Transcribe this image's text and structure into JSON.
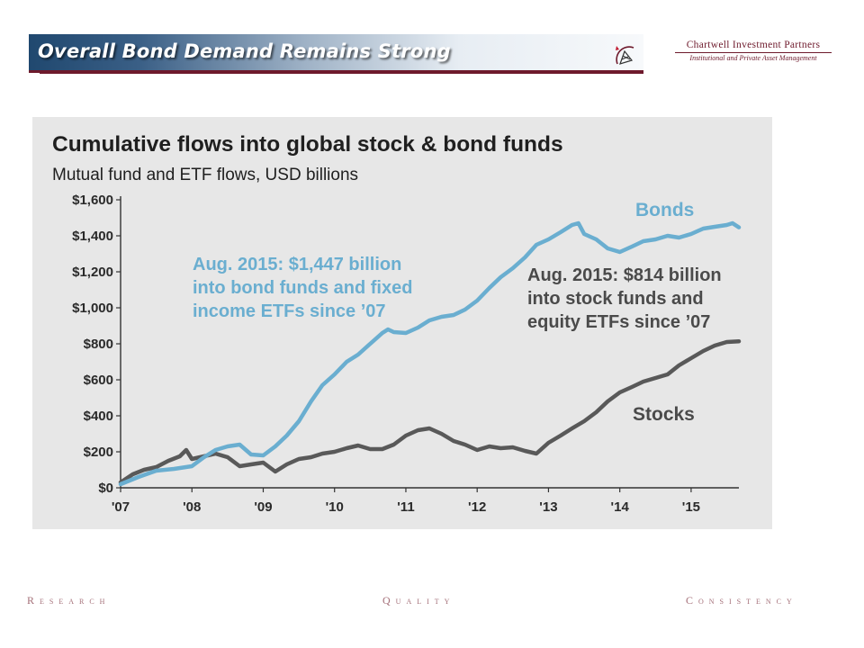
{
  "slide": {
    "title": "Overall Bond Demand Remains Strong",
    "brand_name": "Chartwell Investment Partners",
    "brand_tagline": "Institutional and Private Asset Management",
    "footer": {
      "left": "Research",
      "center": "Quality",
      "right": "Consistency"
    },
    "icons": {
      "logo": "sailboat-compass-icon"
    },
    "colors": {
      "accent": "#6e1a2c",
      "banner_dark": "#20486f",
      "bonds": "#6aaed0",
      "stocks": "#595959",
      "panel": "#e7e7e7"
    }
  },
  "chart_data": {
    "type": "line",
    "title": "Cumulative flows into global stock & bond funds",
    "subtitle": "Mutual fund and ETF flows, USD billions",
    "xlabel": "",
    "ylabel": "",
    "x_ticks": [
      "'07",
      "'08",
      "'09",
      "'10",
      "'11",
      "'12",
      "'13",
      "'14",
      "'15"
    ],
    "y_ticks": [
      "$0",
      "$200",
      "$400",
      "$600",
      "$800",
      "$1,000",
      "$1,200",
      "$1,400",
      "$1,600"
    ],
    "xlim": [
      2007.0,
      2015.67
    ],
    "ylim": [
      0,
      1600
    ],
    "grid": false,
    "legend": "none",
    "series": [
      {
        "name": "Bonds",
        "color": "#6aaed0",
        "x": [
          2007.0,
          2007.25,
          2007.5,
          2007.75,
          2008.0,
          2008.17,
          2008.33,
          2008.5,
          2008.67,
          2008.83,
          2009.0,
          2009.17,
          2009.33,
          2009.5,
          2009.67,
          2009.83,
          2010.0,
          2010.17,
          2010.33,
          2010.5,
          2010.67,
          2010.75,
          2010.83,
          2011.0,
          2011.17,
          2011.33,
          2011.5,
          2011.67,
          2011.83,
          2012.0,
          2012.17,
          2012.33,
          2012.5,
          2012.67,
          2012.83,
          2013.0,
          2013.17,
          2013.33,
          2013.42,
          2013.5,
          2013.67,
          2013.83,
          2014.0,
          2014.17,
          2014.33,
          2014.5,
          2014.67,
          2014.83,
          2015.0,
          2015.17,
          2015.33,
          2015.5,
          2015.58,
          2015.67
        ],
        "values": [
          20,
          60,
          95,
          105,
          120,
          170,
          210,
          230,
          240,
          185,
          180,
          230,
          290,
          370,
          480,
          570,
          630,
          700,
          740,
          800,
          860,
          880,
          865,
          860,
          890,
          930,
          950,
          960,
          990,
          1040,
          1110,
          1170,
          1220,
          1280,
          1350,
          1380,
          1420,
          1460,
          1470,
          1410,
          1380,
          1330,
          1310,
          1340,
          1370,
          1380,
          1400,
          1390,
          1410,
          1440,
          1450,
          1460,
          1470,
          1447
        ]
      },
      {
        "name": "Stocks",
        "color": "#595959",
        "x": [
          2007.0,
          2007.17,
          2007.33,
          2007.5,
          2007.67,
          2007.83,
          2007.92,
          2008.0,
          2008.17,
          2008.33,
          2008.5,
          2008.67,
          2008.83,
          2009.0,
          2009.17,
          2009.33,
          2009.5,
          2009.67,
          2009.83,
          2010.0,
          2010.17,
          2010.33,
          2010.5,
          2010.67,
          2010.83,
          2011.0,
          2011.17,
          2011.33,
          2011.5,
          2011.67,
          2011.83,
          2012.0,
          2012.17,
          2012.33,
          2012.5,
          2012.67,
          2012.83,
          2013.0,
          2013.17,
          2013.33,
          2013.5,
          2013.67,
          2013.83,
          2014.0,
          2014.17,
          2014.33,
          2014.5,
          2014.67,
          2014.83,
          2015.0,
          2015.17,
          2015.33,
          2015.5,
          2015.67
        ],
        "values": [
          30,
          75,
          100,
          115,
          150,
          175,
          210,
          160,
          175,
          190,
          170,
          120,
          130,
          140,
          90,
          130,
          160,
          170,
          190,
          200,
          220,
          235,
          215,
          215,
          240,
          290,
          320,
          330,
          300,
          260,
          240,
          210,
          230,
          220,
          225,
          205,
          190,
          250,
          290,
          330,
          370,
          420,
          480,
          530,
          560,
          590,
          610,
          630,
          680,
          720,
          760,
          790,
          810,
          814
        ]
      }
    ],
    "annotations": [
      {
        "text": "Bonds",
        "series": "Bonds"
      },
      {
        "text": "Stocks",
        "series": "Stocks"
      },
      {
        "series": "Bonds",
        "lines": [
          "Aug. 2015: $1,447 billion",
          "into bond funds and fixed",
          "income ETFs since ’07"
        ]
      },
      {
        "series": "Stocks",
        "lines": [
          "Aug. 2015: $814 billion",
          "into stock funds and",
          "equity ETFs since ’07"
        ]
      }
    ]
  }
}
